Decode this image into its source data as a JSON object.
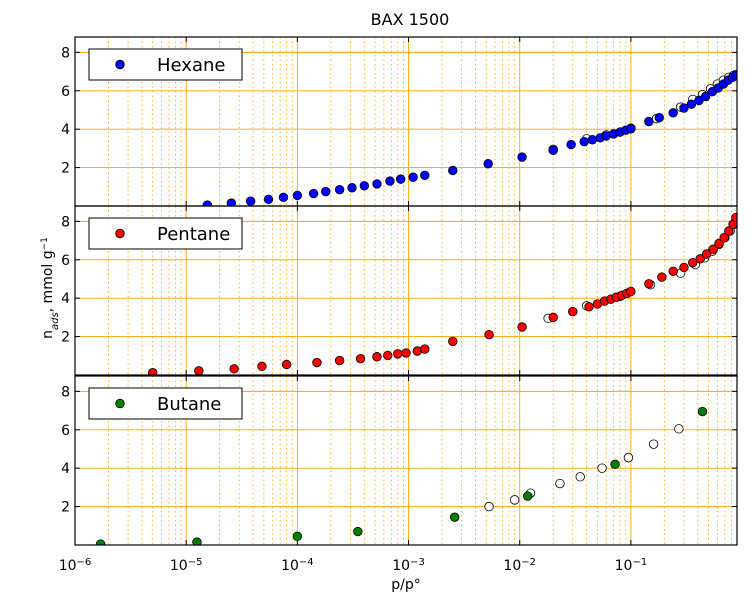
{
  "chart_data": {
    "type": "scatter",
    "title": "BAX 1500",
    "xlabel": "p/p°",
    "ylabel": "n_ads, mmol g−1",
    "ylabel_main": "n",
    "ylabel_sub": "ads",
    "ylabel_unit": ", mmol g",
    "ylabel_exp": "−1",
    "xscale": "log",
    "xlim": [
      1e-06,
      0.9
    ],
    "ylim": [
      0,
      8.8
    ],
    "grid": true,
    "legend_position": "top-left",
    "x_ticks": [
      {
        "base": "10",
        "exp": "−6",
        "value": 1e-06
      },
      {
        "base": "10",
        "exp": "−5",
        "value": 1e-05
      },
      {
        "base": "10",
        "exp": "−4",
        "value": 0.0001
      },
      {
        "base": "10",
        "exp": "−3",
        "value": 0.001
      },
      {
        "base": "10",
        "exp": "−2",
        "value": 0.01
      },
      {
        "base": "10",
        "exp": "−1",
        "value": 0.1
      }
    ],
    "y_ticks": [
      "2",
      "4",
      "6",
      "8"
    ],
    "colors": {
      "hexane": "#0000ff",
      "pentane": "#ff0000",
      "butane": "#008000",
      "desorption": "#ffffff",
      "grid": "#ffa500"
    },
    "panels": [
      {
        "name": "Hexane",
        "color": "#0000ff",
        "desorption": [
          [
            0.02,
            2.95
          ],
          [
            0.04,
            3.5
          ],
          [
            0.06,
            3.7
          ],
          [
            0.1,
            4.05
          ],
          [
            0.17,
            4.55
          ],
          [
            0.28,
            5.15
          ],
          [
            0.36,
            5.55
          ],
          [
            0.44,
            5.8
          ],
          [
            0.52,
            6.1
          ],
          [
            0.6,
            6.35
          ],
          [
            0.68,
            6.55
          ],
          [
            0.76,
            6.7
          ],
          [
            0.84,
            6.8
          ],
          [
            0.88,
            6.85
          ]
        ],
        "adsorption": [
          [
            1.55e-05,
            0.05
          ],
          [
            2.55e-05,
            0.15
          ],
          [
            3.8e-05,
            0.25
          ],
          [
            5.5e-05,
            0.35
          ],
          [
            7.5e-05,
            0.45
          ],
          [
            0.0001,
            0.55
          ],
          [
            0.00014,
            0.65
          ],
          [
            0.00018,
            0.75
          ],
          [
            0.00024,
            0.85
          ],
          [
            0.00031,
            0.95
          ],
          [
            0.0004,
            1.05
          ],
          [
            0.00052,
            1.15
          ],
          [
            0.00068,
            1.3
          ],
          [
            0.00085,
            1.4
          ],
          [
            0.0011,
            1.5
          ],
          [
            0.0014,
            1.6
          ],
          [
            0.0025,
            1.85
          ],
          [
            0.0052,
            2.2
          ],
          [
            0.0105,
            2.55
          ],
          [
            0.02,
            2.9
          ],
          [
            0.029,
            3.2
          ],
          [
            0.038,
            3.35
          ],
          [
            0.045,
            3.45
          ],
          [
            0.053,
            3.55
          ],
          [
            0.06,
            3.65
          ],
          [
            0.07,
            3.75
          ],
          [
            0.08,
            3.85
          ],
          [
            0.09,
            3.95
          ],
          [
            0.1,
            4.02
          ],
          [
            0.145,
            4.4
          ],
          [
            0.18,
            4.6
          ],
          [
            0.24,
            4.85
          ],
          [
            0.3,
            5.1
          ],
          [
            0.35,
            5.3
          ],
          [
            0.41,
            5.5
          ],
          [
            0.47,
            5.7
          ],
          [
            0.54,
            5.95
          ],
          [
            0.61,
            6.15
          ],
          [
            0.68,
            6.35
          ],
          [
            0.75,
            6.55
          ],
          [
            0.82,
            6.7
          ],
          [
            0.88,
            6.8
          ]
        ]
      },
      {
        "name": "Pentane",
        "color": "#ff0000",
        "desorption": [
          [
            0.018,
            2.95
          ],
          [
            0.04,
            3.6
          ],
          [
            0.08,
            4.1
          ],
          [
            0.15,
            4.7
          ],
          [
            0.28,
            5.3
          ],
          [
            0.38,
            5.75
          ],
          [
            0.46,
            6.1
          ],
          [
            0.54,
            6.45
          ],
          [
            0.62,
            6.8
          ],
          [
            0.7,
            7.15
          ],
          [
            0.78,
            7.5
          ],
          [
            0.85,
            7.85
          ],
          [
            0.88,
            8.1
          ]
        ],
        "adsorption": [
          [
            5e-06,
            0.12
          ],
          [
            1.3e-05,
            0.22
          ],
          [
            2.7e-05,
            0.32
          ],
          [
            4.8e-05,
            0.45
          ],
          [
            8e-05,
            0.55
          ],
          [
            0.00015,
            0.65
          ],
          [
            0.00024,
            0.75
          ],
          [
            0.00037,
            0.85
          ],
          [
            0.00052,
            0.95
          ],
          [
            0.00065,
            1.02
          ],
          [
            0.0008,
            1.1
          ],
          [
            0.00095,
            1.15
          ],
          [
            0.0012,
            1.25
          ],
          [
            0.0014,
            1.35
          ],
          [
            0.0025,
            1.75
          ],
          [
            0.0053,
            2.1
          ],
          [
            0.0105,
            2.5
          ],
          [
            0.02,
            3.0
          ],
          [
            0.03,
            3.3
          ],
          [
            0.042,
            3.55
          ],
          [
            0.05,
            3.7
          ],
          [
            0.058,
            3.85
          ],
          [
            0.066,
            3.95
          ],
          [
            0.074,
            4.05
          ],
          [
            0.083,
            4.15
          ],
          [
            0.092,
            4.25
          ],
          [
            0.1,
            4.35
          ],
          [
            0.145,
            4.75
          ],
          [
            0.19,
            5.1
          ],
          [
            0.24,
            5.4
          ],
          [
            0.3,
            5.6
          ],
          [
            0.36,
            5.85
          ],
          [
            0.42,
            6.05
          ],
          [
            0.48,
            6.3
          ],
          [
            0.55,
            6.55
          ],
          [
            0.62,
            6.85
          ],
          [
            0.69,
            7.15
          ],
          [
            0.76,
            7.5
          ],
          [
            0.83,
            7.85
          ],
          [
            0.88,
            8.2
          ]
        ]
      },
      {
        "name": "Butane",
        "color": "#008000",
        "desorption": [
          [
            0.0053,
            2.0
          ],
          [
            0.009,
            2.35
          ],
          [
            0.0125,
            2.7
          ],
          [
            0.023,
            3.2
          ],
          [
            0.035,
            3.55
          ],
          [
            0.055,
            4.0
          ],
          [
            0.095,
            4.55
          ],
          [
            0.16,
            5.25
          ],
          [
            0.27,
            6.05
          ]
        ],
        "adsorption": [
          [
            1.7e-06,
            0.05
          ],
          [
            1.25e-05,
            0.15
          ],
          [
            0.0001,
            0.45
          ],
          [
            0.00035,
            0.7
          ],
          [
            0.0026,
            1.45
          ],
          [
            0.0118,
            2.55
          ],
          [
            0.072,
            4.2
          ],
          [
            0.44,
            6.95
          ]
        ]
      }
    ]
  }
}
